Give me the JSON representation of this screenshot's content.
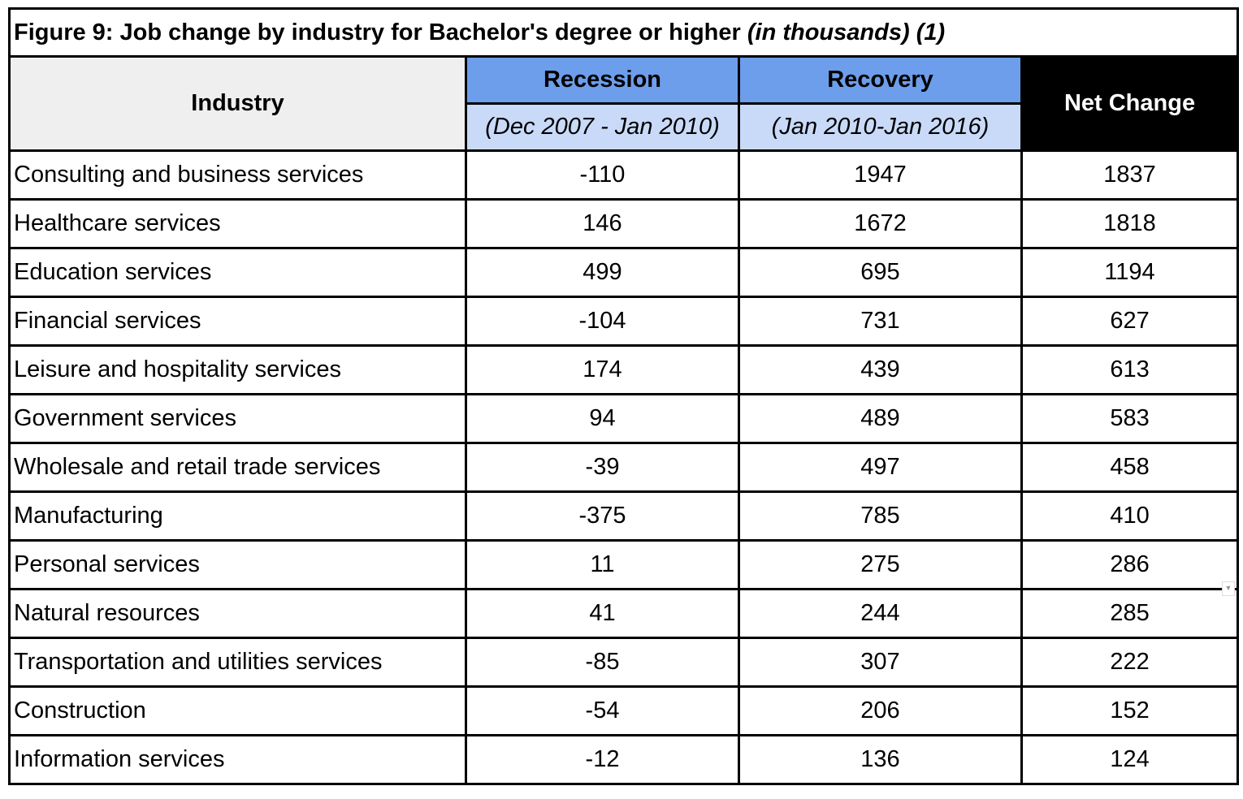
{
  "title": {
    "main": "Figure 9: Job change by industry for Bachelor's degree or higher",
    "italic": "(in thousands)",
    "note": "(1)"
  },
  "headers": {
    "industry": "Industry",
    "recession": "Recession",
    "recession_period": "(Dec 2007 - Jan 2010)",
    "recovery": "Recovery",
    "recovery_period": "(Jan 2010-Jan 2016)",
    "net_change": "Net Change"
  },
  "rows": [
    {
      "industry": "Consulting and business services",
      "recession": "-110",
      "recovery": "1947",
      "net": "1837"
    },
    {
      "industry": "Healthcare services",
      "recession": "146",
      "recovery": "1672",
      "net": "1818"
    },
    {
      "industry": "Education services",
      "recession": "499",
      "recovery": "695",
      "net": "1194"
    },
    {
      "industry": "Financial services",
      "recession": "-104",
      "recovery": "731",
      "net": "627"
    },
    {
      "industry": "Leisure and hospitality services",
      "recession": "174",
      "recovery": "439",
      "net": "613"
    },
    {
      "industry": "Government services",
      "recession": "94",
      "recovery": "489",
      "net": "583"
    },
    {
      "industry": "Wholesale and retail trade services",
      "recession": "-39",
      "recovery": "497",
      "net": "458"
    },
    {
      "industry": "Manufacturing",
      "recession": "-375",
      "recovery": "785",
      "net": "410"
    },
    {
      "industry": "Personal services",
      "recession": "11",
      "recovery": "275",
      "net": "286"
    },
    {
      "industry": "Natural resources",
      "recession": "41",
      "recovery": "244",
      "net": "285"
    },
    {
      "industry": "Transportation and utilities services",
      "recession": "-85",
      "recovery": "307",
      "net": "222"
    },
    {
      "industry": "Construction",
      "recession": "-54",
      "recovery": "206",
      "net": "152"
    },
    {
      "industry": "Information services",
      "recession": "-12",
      "recovery": "136",
      "net": "124"
    }
  ],
  "colors": {
    "header_gray": "#efefef",
    "recession_blue": "#6d9eeb",
    "period_light_blue": "#c9daf8",
    "net_black": "#000000"
  }
}
